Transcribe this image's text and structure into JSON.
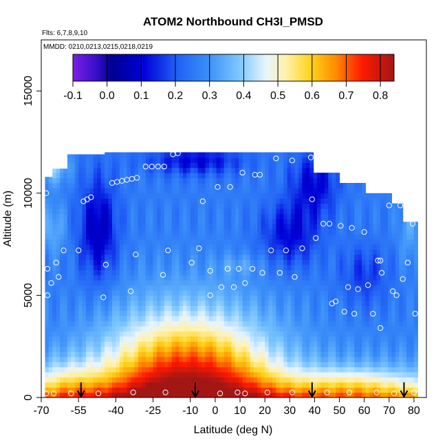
{
  "chart_data": {
    "type": "heatmap",
    "title": "ATOM2 Northbound CH3I_PMSD",
    "flights_label": "Flts: 6,7,8,9,10",
    "dates_label": "MMDD: 0210,0213,0215,0218,0219",
    "xlabel": "Latitude (deg N)",
    "ylabel": "Altitude (m)",
    "xlim": [
      -70,
      85
    ],
    "ylim": [
      0,
      17500
    ],
    "x_ticks": [
      -70,
      -55,
      -40,
      -25,
      -10,
      0,
      10,
      20,
      30,
      40,
      50,
      60,
      70,
      80
    ],
    "x_tick_labels": [
      "-70",
      "-55",
      "-40",
      "-25",
      "-10",
      "0",
      "10",
      "20",
      "30",
      "40",
      "50",
      "60",
      "70",
      "80"
    ],
    "y_ticks": [
      0,
      5000,
      10000,
      15000
    ],
    "y_tick_labels": [
      "0",
      "5000",
      "10000",
      "15000"
    ],
    "colorbar": {
      "ticks": [
        -0.1,
        0.0,
        0.1,
        0.2,
        0.3,
        0.4,
        0.5,
        0.6,
        0.7,
        0.8
      ],
      "tick_labels": [
        "-0.1",
        "0.0",
        "0.1",
        "0.2",
        "0.3",
        "0.4",
        "0.5",
        "0.6",
        "0.7",
        "0.8"
      ],
      "range": [
        -0.1,
        0.84
      ]
    },
    "arrow_latitudes": [
      -54,
      -8,
      39,
      76
    ],
    "sample_points": [
      [
        -68,
        10000
      ],
      [
        -67.5,
        6300
      ],
      [
        -67.5,
        5000
      ],
      [
        -66,
        5600
      ],
      [
        -64,
        6600
      ],
      [
        -63,
        5900
      ],
      [
        -61,
        7200
      ],
      [
        -53,
        9600
      ],
      [
        -51.5,
        9700
      ],
      [
        -50,
        9800
      ],
      [
        -55,
        7200
      ],
      [
        -44,
        6500
      ],
      [
        -45,
        4900
      ],
      [
        -41.5,
        10500
      ],
      [
        -39.5,
        10550
      ],
      [
        -37.5,
        10600
      ],
      [
        -35.5,
        10650
      ],
      [
        -33.5,
        10700
      ],
      [
        -31.5,
        10750
      ],
      [
        -32,
        7000
      ],
      [
        -34,
        5200
      ],
      [
        -28,
        11300
      ],
      [
        -25.5,
        11300
      ],
      [
        -23,
        11300
      ],
      [
        -20.5,
        11300
      ],
      [
        -21,
        6000
      ],
      [
        -19,
        7200
      ],
      [
        -17,
        11900
      ],
      [
        -15,
        11950
      ],
      [
        -9.5,
        6600
      ],
      [
        -6.5,
        7300
      ],
      [
        -5,
        9600
      ],
      [
        -2,
        5000
      ],
      [
        1,
        10300
      ],
      [
        -2,
        6200
      ],
      [
        2.5,
        5400
      ],
      [
        5,
        6300
      ],
      [
        6,
        10300
      ],
      [
        7.5,
        5400
      ],
      [
        9.5,
        6300
      ],
      [
        11,
        11000
      ],
      [
        12,
        5600
      ],
      [
        15,
        6300
      ],
      [
        16,
        10900
      ],
      [
        18,
        10900
      ],
      [
        19,
        6100
      ],
      [
        22.5,
        7200
      ],
      [
        24.5,
        11700
      ],
      [
        26,
        6100
      ],
      [
        28.5,
        7200
      ],
      [
        31,
        11600
      ],
      [
        32,
        5900
      ],
      [
        35,
        7300
      ],
      [
        38.5,
        11750
      ],
      [
        39,
        9700
      ],
      [
        40.5,
        7800
      ],
      [
        43.5,
        8500
      ],
      [
        46,
        8500
      ],
      [
        47,
        4600
      ],
      [
        48.5,
        4700
      ],
      [
        50.5,
        8400
      ],
      [
        52,
        4200
      ],
      [
        53.5,
        5400
      ],
      [
        55,
        8300
      ],
      [
        56,
        4100
      ],
      [
        57.5,
        5300
      ],
      [
        60,
        8100
      ],
      [
        61.5,
        5500
      ],
      [
        63.5,
        4100
      ],
      [
        65.5,
        6700
      ],
      [
        66.5,
        6700
      ],
      [
        67,
        6100
      ],
      [
        66.5,
        3400
      ],
      [
        70,
        9400
      ],
      [
        71.5,
        5200
      ],
      [
        73,
        5000
      ],
      [
        74.5,
        9400
      ],
      [
        75.5,
        5800
      ],
      [
        77.5,
        6600
      ],
      [
        79.5,
        8500
      ],
      [
        80.5,
        4100
      ],
      [
        -68,
        200
      ],
      [
        -65,
        200
      ],
      [
        -58,
        200
      ],
      [
        -47,
        200
      ],
      [
        -33,
        250
      ],
      [
        -20,
        250
      ],
      [
        2,
        200
      ],
      [
        9,
        250
      ],
      [
        12,
        200
      ],
      [
        21,
        250
      ],
      [
        31,
        250
      ],
      [
        45,
        250
      ],
      [
        54,
        250
      ],
      [
        65,
        250
      ],
      [
        72,
        200
      ],
      [
        80,
        250
      ]
    ]
  }
}
